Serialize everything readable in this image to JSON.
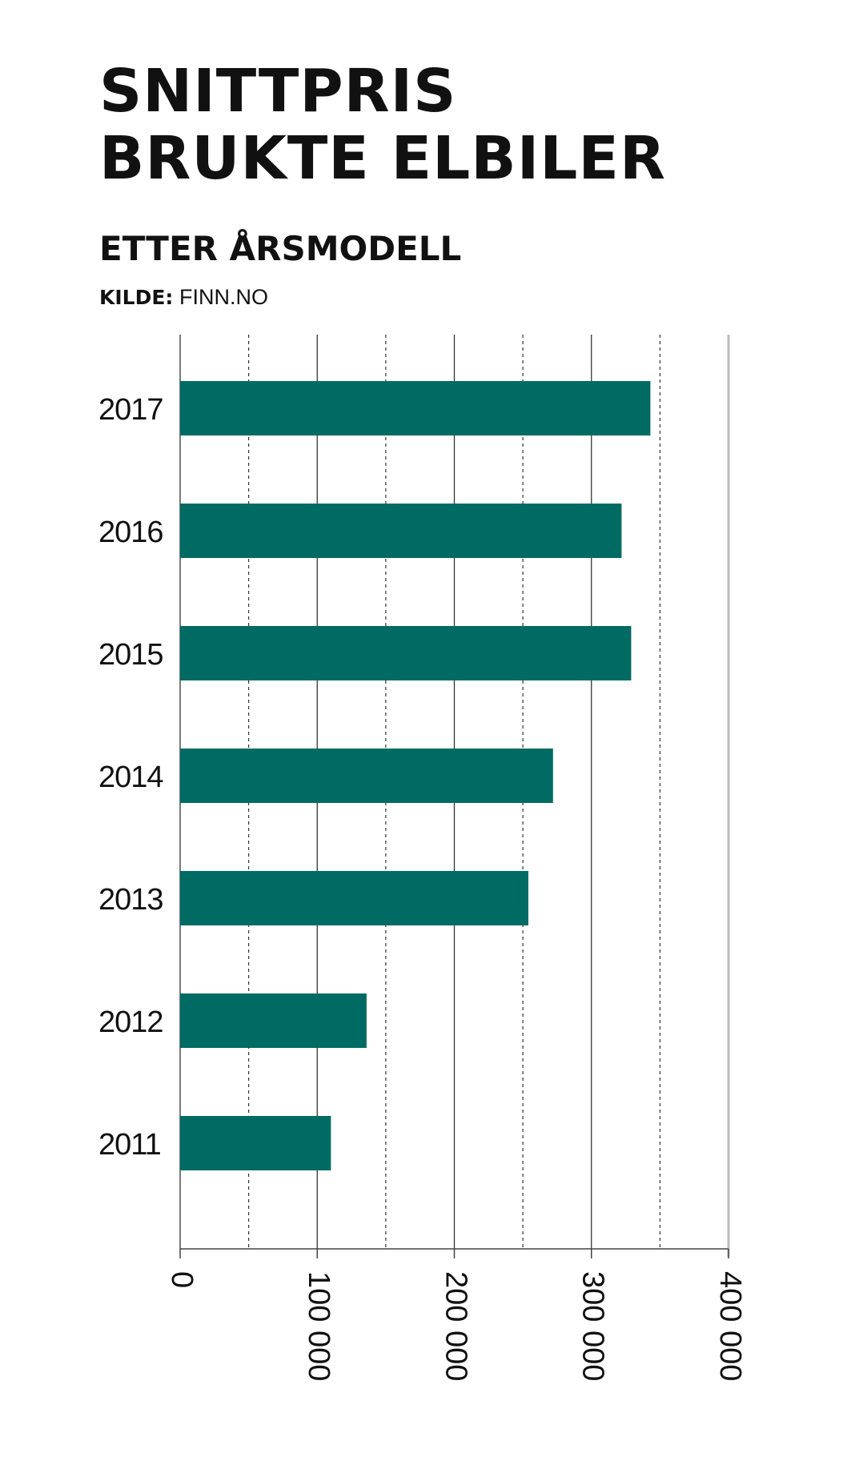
{
  "header": {
    "title_line1": "SNITTPRIS",
    "title_line2": "BRUKTE ELBILER",
    "subtitle": "ETTER ÅRSMODELL",
    "source_label": "KILDE:",
    "source_value": "FINN.NO"
  },
  "colors": {
    "bar": "#006b63",
    "grid": "#333333",
    "axis": "#444444",
    "right_axis": "#bbbbbb"
  },
  "chart_data": {
    "type": "bar",
    "orientation": "horizontal",
    "title": "SNITTPRIS BRUKTE ELBILER",
    "subtitle": "ETTER ÅRSMODELL",
    "categories": [
      "2017",
      "2016",
      "2015",
      "2014",
      "2013",
      "2012",
      "2011"
    ],
    "values": [
      343000,
      322000,
      329000,
      272000,
      254000,
      136000,
      110000
    ],
    "xlim": [
      0,
      400000
    ],
    "xticks": [
      0,
      100000,
      200000,
      300000,
      400000
    ],
    "xtick_labels": [
      "0",
      "100 000",
      "200 000",
      "300 000",
      "400 000"
    ],
    "minor_gridlines": [
      50000,
      150000,
      250000,
      350000
    ],
    "grid": true,
    "xlabel": "",
    "ylabel": ""
  }
}
